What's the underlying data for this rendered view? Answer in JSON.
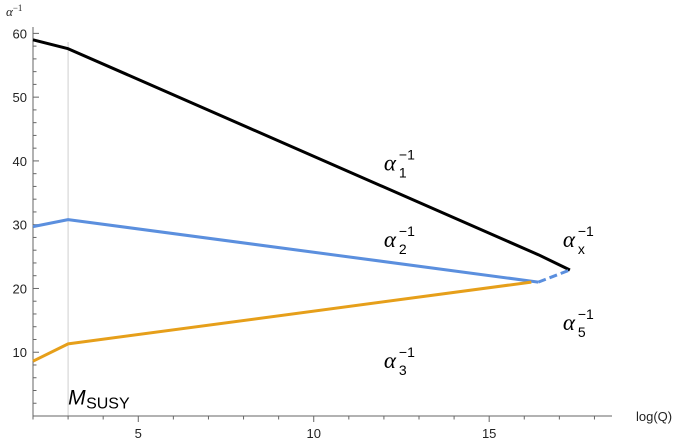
{
  "chart_data": {
    "type": "line",
    "xlabel": "log(Q)",
    "ylabel": {
      "symbol": "α",
      "sup": "−1"
    },
    "xlim": [
      2,
      18.5
    ],
    "ylim": [
      0,
      61
    ],
    "xticks": [
      5,
      10,
      15
    ],
    "yticks": [
      10,
      20,
      30,
      40,
      50,
      60
    ],
    "grid": false,
    "series": [
      {
        "color": "#000000",
        "style": "solid",
        "x": [
          2,
          3,
          16.4,
          17.3
        ],
        "y": [
          59.0,
          57.6,
          25.3,
          22.9
        ]
      },
      {
        "color": "#5b8fde",
        "style": "solid",
        "x": [
          2,
          3,
          16.4
        ],
        "y": [
          29.7,
          30.8,
          21.0
        ]
      },
      {
        "color": "#5b8fde",
        "style": "dashed",
        "x": [
          16.4,
          17.3
        ],
        "y": [
          21.0,
          22.9
        ]
      },
      {
        "color": "#e69f1a",
        "style": "solid",
        "x": [
          2,
          3,
          16.2
        ],
        "y": [
          8.6,
          11.3,
          21.0
        ]
      }
    ],
    "reference_lines": [
      {
        "orientation": "vertical",
        "x": 3,
        "color": "#cfcfcf"
      }
    ],
    "annotations": [
      {
        "symbol": "α",
        "sub": "1",
        "sup": "−1",
        "x": 12.0,
        "y": 38.5
      },
      {
        "symbol": "α",
        "sub": "2",
        "sup": "−1",
        "x": 12.0,
        "y": 26.5
      },
      {
        "symbol": "α",
        "sub": "3",
        "sup": "−1",
        "x": 12.0,
        "y": 7.5
      },
      {
        "symbol": "α",
        "sub": "x",
        "sup": "−1",
        "x": 17.1,
        "y": 26.5
      },
      {
        "symbol": "α",
        "sub": "5",
        "sup": "−1",
        "x": 17.1,
        "y": 13.5
      },
      {
        "main": "M",
        "sub": "SUSY",
        "x": 3.0,
        "y": 1.8
      }
    ]
  }
}
